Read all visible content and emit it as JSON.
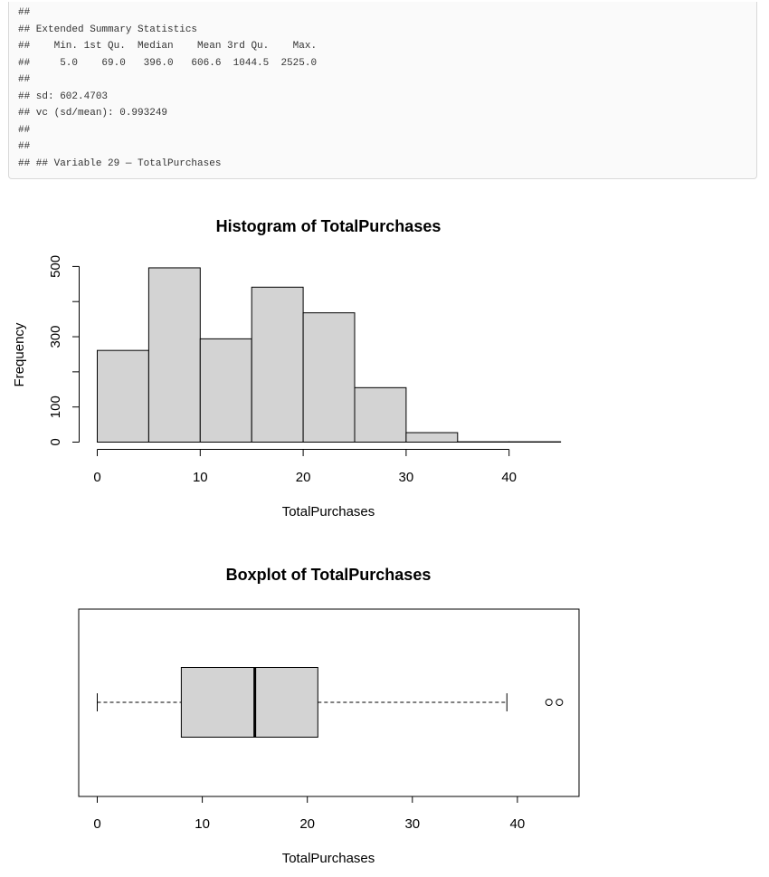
{
  "console": {
    "lines": [
      "##",
      "## Extended Summary Statistics",
      "##    Min. 1st Qu.  Median    Mean 3rd Qu.    Max.",
      "##     5.0    69.0   396.0   606.6  1044.5  2525.0",
      "##",
      "## sd: 602.4703",
      "## vc (sd/mean): 0.993249",
      "##",
      "##",
      "## ## Variable 29 — TotalPurchases"
    ]
  },
  "chart_data": [
    {
      "type": "bar",
      "title": "Histogram of TotalPurchases",
      "xlabel": "TotalPurchases",
      "ylabel": "Frequency",
      "bins": [
        {
          "from": 0,
          "to": 5,
          "count": 261
        },
        {
          "from": 5,
          "to": 10,
          "count": 496
        },
        {
          "from": 10,
          "to": 15,
          "count": 294
        },
        {
          "from": 15,
          "to": 20,
          "count": 441
        },
        {
          "from": 20,
          "to": 25,
          "count": 368
        },
        {
          "from": 25,
          "to": 30,
          "count": 155
        },
        {
          "from": 30,
          "to": 35,
          "count": 27
        },
        {
          "from": 35,
          "to": 40,
          "count": 1
        },
        {
          "from": 40,
          "to": 45,
          "count": 1
        }
      ],
      "xticks": [
        0,
        10,
        20,
        30,
        40
      ],
      "yticks": [
        0,
        100,
        200,
        300,
        400,
        500
      ],
      "ytick_labels": [
        "0",
        "100",
        "",
        "300",
        "",
        "500"
      ],
      "grid": false
    },
    {
      "type": "boxplot",
      "title": "Boxplot of TotalPurchases",
      "xlabel": "TotalPurchases",
      "min": 0,
      "q1": 8,
      "median": 15,
      "q3": 21,
      "max": 39,
      "outliers": [
        43,
        44
      ],
      "xticks": [
        0,
        10,
        20,
        30,
        40
      ],
      "xlim": [
        -1.8,
        45.8
      ],
      "grid": false
    }
  ]
}
